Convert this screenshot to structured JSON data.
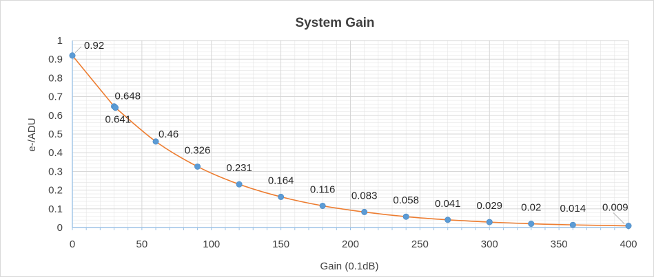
{
  "chart_data": {
    "type": "scatter",
    "title": "System Gain",
    "xlabel": "Gain (0.1dB)",
    "ylabel": "e-/ADU",
    "xlim": [
      0,
      400
    ],
    "ylim": [
      0,
      1
    ],
    "x_ticks": [
      0,
      50,
      100,
      150,
      200,
      250,
      300,
      350,
      400
    ],
    "y_ticks": [
      0,
      0.1,
      0.2,
      0.3,
      0.4,
      0.5,
      0.6,
      0.7,
      0.8,
      0.9,
      1
    ],
    "grid": true,
    "legend": "none",
    "series": [
      {
        "points": [
          {
            "x": 0,
            "y": 0.92,
            "label": "0.92"
          },
          {
            "x": 30,
            "y": 0.648,
            "label": "0.648"
          },
          {
            "x": 31,
            "y": 0.641,
            "label": "0.641"
          },
          {
            "x": 60,
            "y": 0.46,
            "label": "0.46"
          },
          {
            "x": 90,
            "y": 0.326,
            "label": "0.326"
          },
          {
            "x": 120,
            "y": 0.231,
            "label": "0.231"
          },
          {
            "x": 150,
            "y": 0.164,
            "label": "0.164"
          },
          {
            "x": 180,
            "y": 0.116,
            "label": "0.116"
          },
          {
            "x": 210,
            "y": 0.083,
            "label": "0.083"
          },
          {
            "x": 240,
            "y": 0.058,
            "label": "0.058"
          },
          {
            "x": 270,
            "y": 0.041,
            "label": "0.041"
          },
          {
            "x": 300,
            "y": 0.029,
            "label": "0.029"
          },
          {
            "x": 330,
            "y": 0.02,
            "label": "0.02"
          },
          {
            "x": 360,
            "y": 0.014,
            "label": "0.014"
          },
          {
            "x": 400,
            "y": 0.009,
            "label": "0.009"
          }
        ]
      }
    ],
    "colors": {
      "marker": "#5b9bd5",
      "trendline": "#ed7d31",
      "grid": "#e4e4e4",
      "axis": "#9dc3e6"
    }
  }
}
